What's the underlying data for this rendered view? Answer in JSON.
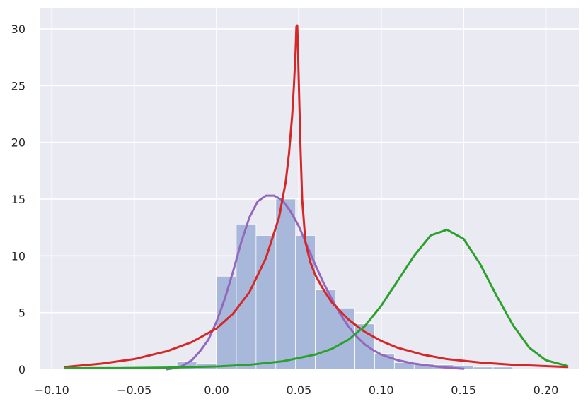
{
  "chart_data": {
    "type": "bar",
    "title": "",
    "xlabel": "",
    "ylabel": "",
    "xlim": [
      -0.107,
      0.22
    ],
    "ylim": [
      0,
      31.8
    ],
    "grid": true,
    "background_color": "#eaeaf2",
    "grid_color": "#ffffff",
    "x_ticks": [
      {
        "value": -0.1,
        "label": "−0.10"
      },
      {
        "value": -0.05,
        "label": "−0.05"
      },
      {
        "value": 0.0,
        "label": "0.00"
      },
      {
        "value": 0.05,
        "label": "0.05"
      },
      {
        "value": 0.1,
        "label": "0.10"
      },
      {
        "value": 0.15,
        "label": "0.15"
      },
      {
        "value": 0.2,
        "label": "0.20"
      }
    ],
    "y_ticks": [
      {
        "value": 0,
        "label": "0"
      },
      {
        "value": 5,
        "label": "5"
      },
      {
        "value": 10,
        "label": "10"
      },
      {
        "value": 15,
        "label": "15"
      },
      {
        "value": 20,
        "label": "20"
      },
      {
        "value": 25,
        "label": "25"
      },
      {
        "value": 30,
        "label": "30"
      }
    ],
    "histogram": {
      "color": "#a8b8db",
      "bin_edges": [
        -0.024,
        -0.012,
        0.0,
        0.012,
        0.024,
        0.036,
        0.048,
        0.06,
        0.072,
        0.084,
        0.096,
        0.108,
        0.12,
        0.132,
        0.144,
        0.156,
        0.168,
        0.18
      ],
      "values": [
        0.7,
        0.5,
        8.2,
        12.8,
        11.8,
        15.0,
        11.8,
        7.0,
        5.4,
        4.0,
        1.4,
        0.6,
        0.5,
        0.4,
        0.3,
        0.2,
        0.2
      ]
    },
    "series": [
      {
        "color": "#9467bd",
        "x": [
          -0.03,
          -0.022,
          -0.015,
          -0.01,
          -0.005,
          0.0,
          0.005,
          0.01,
          0.015,
          0.02,
          0.025,
          0.03,
          0.035,
          0.04,
          0.045,
          0.05,
          0.055,
          0.06,
          0.065,
          0.07,
          0.075,
          0.08,
          0.085,
          0.09,
          0.095,
          0.1,
          0.11,
          0.12,
          0.13,
          0.14,
          0.15
        ],
        "y": [
          0.0,
          0.2,
          0.8,
          1.6,
          2.6,
          4.2,
          6.2,
          8.6,
          11.2,
          13.4,
          14.8,
          15.3,
          15.3,
          14.9,
          13.9,
          12.6,
          10.9,
          9.2,
          7.6,
          6.2,
          4.9,
          3.8,
          2.9,
          2.2,
          1.7,
          1.3,
          0.8,
          0.5,
          0.3,
          0.15,
          0.05
        ]
      },
      {
        "color": "#d62728",
        "x": [
          -0.092,
          -0.07,
          -0.05,
          -0.03,
          -0.015,
          0.0,
          0.01,
          0.02,
          0.03,
          0.038,
          0.042,
          0.044,
          0.046,
          0.047,
          0.048,
          0.0485,
          0.049,
          0.0495,
          0.05,
          0.051,
          0.052,
          0.054,
          0.057,
          0.06,
          0.065,
          0.07,
          0.08,
          0.09,
          0.1,
          0.11,
          0.125,
          0.14,
          0.16,
          0.18,
          0.213
        ],
        "y": [
          0.2,
          0.5,
          0.9,
          1.6,
          2.4,
          3.6,
          4.9,
          6.8,
          9.8,
          13.4,
          16.5,
          19.0,
          22.5,
          25.0,
          28.0,
          30.2,
          30.3,
          28.0,
          25.0,
          19.5,
          15.0,
          11.2,
          9.4,
          8.3,
          7.0,
          5.9,
          4.4,
          3.3,
          2.5,
          1.9,
          1.3,
          0.9,
          0.6,
          0.4,
          0.2
        ]
      },
      {
        "color": "#2ca02c",
        "x": [
          -0.092,
          -0.06,
          -0.03,
          0.0,
          0.02,
          0.04,
          0.06,
          0.07,
          0.08,
          0.09,
          0.1,
          0.11,
          0.12,
          0.13,
          0.14,
          0.15,
          0.16,
          0.17,
          0.18,
          0.19,
          0.2,
          0.213
        ],
        "y": [
          0.1,
          0.1,
          0.15,
          0.25,
          0.4,
          0.7,
          1.3,
          1.8,
          2.6,
          3.8,
          5.6,
          7.8,
          10.0,
          11.8,
          12.3,
          11.5,
          9.3,
          6.5,
          3.9,
          1.9,
          0.8,
          0.3
        ]
      }
    ]
  }
}
